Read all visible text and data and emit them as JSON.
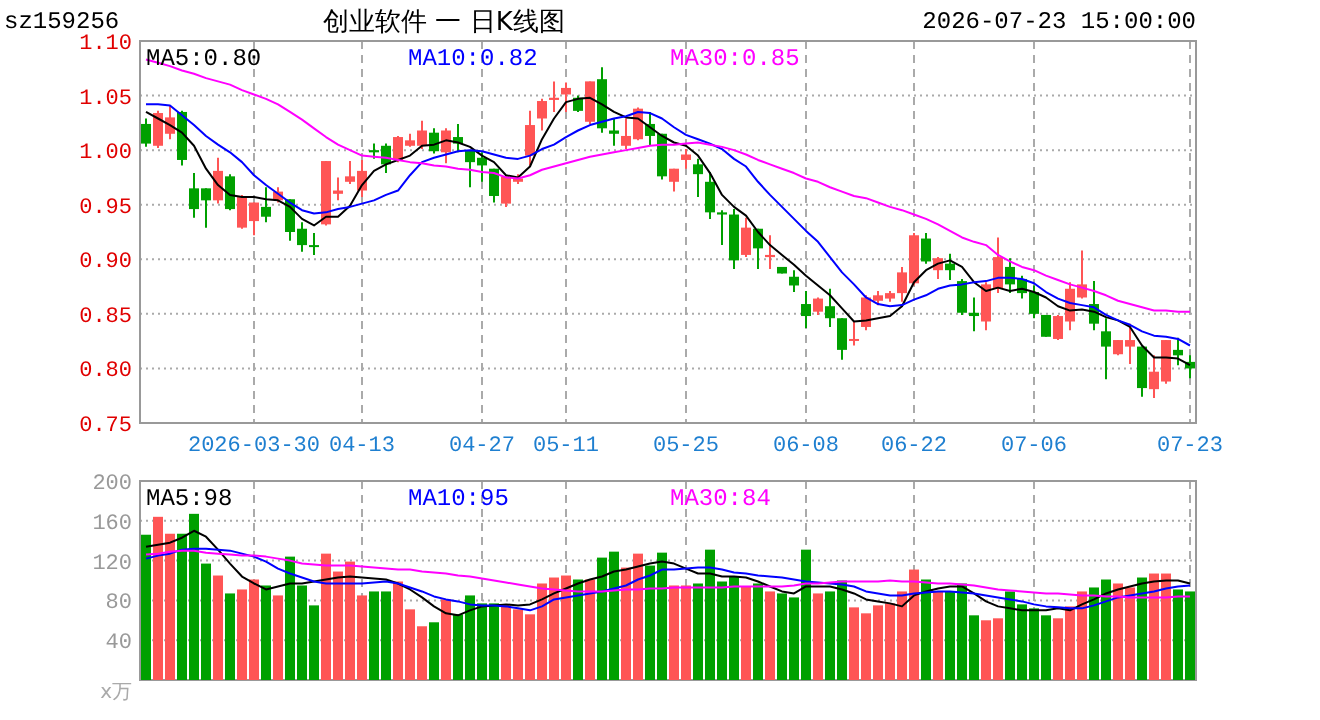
{
  "chart_data": [
    {
      "type": "candlestick",
      "title": "创业软件 一 日K线图",
      "subtitle": "2026-07-23 15:00:00",
      "annotations": [
        "sz159256"
      ],
      "categories": [
        null,
        null,
        null,
        null,
        null,
        null,
        null,
        null,
        null,
        "2026-03-30",
        null,
        null,
        null,
        null,
        null,
        null,
        null,
        null,
        "04-13",
        null,
        null,
        null,
        null,
        null,
        null,
        null,
        null,
        null,
        "04-27",
        null,
        null,
        null,
        null,
        null,
        null,
        "05-11",
        null,
        null,
        null,
        null,
        null,
        null,
        null,
        null,
        null,
        "05-25",
        null,
        null,
        null,
        null,
        null,
        null,
        null,
        null,
        null,
        "06-08",
        null,
        null,
        null,
        null,
        null,
        null,
        null,
        null,
        "06-22",
        null,
        null,
        null,
        null,
        null,
        null,
        null,
        null,
        null,
        "07-06",
        null,
        null,
        null,
        null,
        null,
        null,
        null,
        null,
        null,
        null,
        null,
        null,
        "07-23"
      ],
      "ohlc": [
        [
          1.024,
          1.029,
          1.003,
          1.006
        ],
        [
          1.004,
          1.036,
          1.002,
          1.034
        ],
        [
          1.015,
          1.041,
          1.01,
          1.03
        ],
        [
          1.035,
          1.036,
          0.986,
          0.991
        ],
        [
          0.965,
          0.979,
          0.938,
          0.946
        ],
        [
          0.965,
          0.965,
          0.929,
          0.954
        ],
        [
          0.954,
          0.993,
          0.951,
          0.981
        ],
        [
          0.976,
          0.978,
          0.945,
          0.946
        ],
        [
          0.929,
          0.959,
          0.928,
          0.957
        ],
        [
          0.935,
          0.952,
          0.922,
          0.952
        ],
        [
          0.948,
          0.966,
          0.934,
          0.939
        ],
        [
          0.954,
          0.966,
          0.952,
          0.962
        ],
        [
          0.955,
          0.955,
          0.917,
          0.925
        ],
        [
          0.928,
          0.934,
          0.907,
          0.913
        ],
        [
          0.913,
          0.924,
          0.904,
          0.912
        ],
        [
          0.932,
          0.99,
          0.931,
          0.99
        ],
        [
          0.96,
          0.975,
          0.954,
          0.963
        ],
        [
          0.971,
          0.99,
          0.969,
          0.976
        ],
        [
          0.963,
          0.991,
          0.957,
          0.981
        ],
        [
          1.0,
          1.006,
          0.992,
          0.998
        ],
        [
          1.004,
          1.006,
          0.979,
          0.987
        ],
        [
          0.991,
          1.013,
          0.989,
          1.012
        ],
        [
          1.004,
          1.015,
          1.003,
          1.009
        ],
        [
          1.004,
          1.027,
          1.001,
          1.018
        ],
        [
          1.016,
          1.02,
          0.997,
          0.999
        ],
        [
          0.998,
          1.02,
          0.988,
          1.018
        ],
        [
          1.012,
          1.024,
          0.998,
          1.006
        ],
        [
          1.0,
          1.0,
          0.966,
          0.989
        ],
        [
          0.993,
          0.998,
          0.971,
          0.986
        ],
        [
          0.983,
          0.983,
          0.952,
          0.958
        ],
        [
          0.951,
          0.976,
          0.948,
          0.976
        ],
        [
          0.971,
          0.978,
          0.969,
          0.974
        ],
        [
          0.995,
          1.036,
          0.986,
          1.023
        ],
        [
          1.029,
          1.047,
          1.018,
          1.045
        ],
        [
          1.046,
          1.063,
          1.035,
          1.048
        ],
        [
          1.051,
          1.062,
          1.035,
          1.057
        ],
        [
          1.048,
          1.05,
          1.035,
          1.036
        ],
        [
          1.026,
          1.063,
          1.024,
          1.063
        ],
        [
          1.065,
          1.076,
          1.016,
          1.02
        ],
        [
          1.018,
          1.029,
          1.004,
          1.015
        ],
        [
          1.004,
          1.029,
          1.001,
          1.013
        ],
        [
          1.01,
          1.039,
          1.009,
          1.038
        ],
        [
          1.024,
          1.035,
          1.004,
          1.013
        ],
        [
          1.015,
          1.015,
          0.973,
          0.976
        ],
        [
          0.971,
          0.983,
          0.962,
          0.983
        ],
        [
          0.991,
          1.001,
          0.983,
          0.996
        ],
        [
          0.987,
          0.992,
          0.957,
          0.978
        ],
        [
          0.971,
          0.98,
          0.937,
          0.943
        ],
        [
          0.943,
          0.945,
          0.913,
          0.941
        ],
        [
          0.941,
          0.946,
          0.891,
          0.899
        ],
        [
          0.904,
          0.938,
          0.902,
          0.929
        ],
        [
          0.928,
          0.928,
          0.891,
          0.91
        ],
        [
          0.902,
          0.922,
          0.891,
          0.904
        ],
        [
          0.893,
          0.893,
          0.887,
          0.887
        ],
        [
          0.884,
          0.89,
          0.87,
          0.876
        ],
        [
          0.859,
          0.871,
          0.837,
          0.848
        ],
        [
          0.852,
          0.865,
          0.849,
          0.864
        ],
        [
          0.857,
          0.873,
          0.838,
          0.846
        ],
        [
          0.846,
          0.846,
          0.808,
          0.817
        ],
        [
          0.826,
          0.843,
          0.821,
          0.827
        ],
        [
          0.838,
          0.867,
          0.835,
          0.865
        ],
        [
          0.862,
          0.871,
          0.858,
          0.867
        ],
        [
          0.864,
          0.871,
          0.861,
          0.869
        ],
        [
          0.869,
          0.893,
          0.861,
          0.888
        ],
        [
          0.878,
          0.924,
          0.876,
          0.922
        ],
        [
          0.919,
          0.924,
          0.896,
          0.898
        ],
        [
          0.89,
          0.902,
          0.882,
          0.901
        ],
        [
          0.896,
          0.905,
          0.881,
          0.89
        ],
        [
          0.88,
          0.882,
          0.849,
          0.851
        ],
        [
          0.851,
          0.865,
          0.834,
          0.848
        ],
        [
          0.843,
          0.879,
          0.835,
          0.877
        ],
        [
          0.873,
          0.92,
          0.869,
          0.902
        ],
        [
          0.893,
          0.901,
          0.869,
          0.877
        ],
        [
          0.882,
          0.885,
          0.864,
          0.869
        ],
        [
          0.87,
          0.876,
          0.846,
          0.85
        ],
        [
          0.849,
          0.849,
          0.829,
          0.829
        ],
        [
          0.827,
          0.849,
          0.826,
          0.848
        ],
        [
          0.843,
          0.879,
          0.835,
          0.873
        ],
        [
          0.865,
          0.908,
          0.864,
          0.877
        ],
        [
          0.859,
          0.88,
          0.835,
          0.841
        ],
        [
          0.834,
          0.846,
          0.79,
          0.82
        ],
        [
          0.813,
          0.826,
          0.812,
          0.826
        ],
        [
          0.82,
          0.841,
          0.804,
          0.826
        ],
        [
          0.82,
          0.82,
          0.774,
          0.782
        ],
        [
          0.781,
          0.812,
          0.773,
          0.797
        ],
        [
          0.788,
          0.826,
          0.786,
          0.826
        ],
        [
          0.817,
          0.828,
          0.803,
          0.812
        ],
        [
          0.806,
          0.812,
          0.791,
          0.8
        ]
      ],
      "colors": [
        "#00a000",
        "#ff5555",
        "#ff5555",
        "#00a000",
        "#00a000",
        "#00a000",
        "#ff5555",
        "#00a000",
        "#ff5555",
        "#ff5555",
        "#00a000",
        "#ff5555",
        "#00a000",
        "#00a000",
        "#00a000",
        "#ff5555",
        "#ff5555",
        "#ff5555",
        "#ff5555",
        "#00a000",
        "#00a000",
        "#ff5555",
        "#ff5555",
        "#ff5555",
        "#00a000",
        "#ff5555",
        "#00a000",
        "#00a000",
        "#00a000",
        "#00a000",
        "#ff5555",
        "#ff5555",
        "#ff5555",
        "#ff5555",
        "#ff5555",
        "#ff5555",
        "#00a000",
        "#ff5555",
        "#00a000",
        "#00a000",
        "#ff5555",
        "#ff5555",
        "#00a000",
        "#00a000",
        "#ff5555",
        "#ff5555",
        "#00a000",
        "#00a000",
        "#00a000",
        "#00a000",
        "#ff5555",
        "#00a000",
        "#ff5555",
        "#00a000",
        "#00a000",
        "#00a000",
        "#ff5555",
        "#00a000",
        "#00a000",
        "#ff5555",
        "#ff5555",
        "#ff5555",
        "#ff5555",
        "#ff5555",
        "#ff5555",
        "#00a000",
        "#ff5555",
        "#00a000",
        "#00a000",
        "#00a000",
        "#ff5555",
        "#ff5555",
        "#00a000",
        "#00a000",
        "#00a000",
        "#00a000",
        "#ff5555",
        "#ff5555",
        "#ff5555",
        "#00a000",
        "#00a000",
        "#ff5555",
        "#ff5555",
        "#00a000",
        "#ff5555",
        "#ff5555",
        "#00a000",
        "#00a000"
      ],
      "series": [
        {
          "name": "MA5:0.80",
          "type": "line",
          "color": "#000000",
          "values": [
            1.035,
            1.029,
            1.023,
            1.016,
            1.004,
            0.983,
            0.968,
            0.959,
            0.957,
            0.957,
            0.955,
            0.954,
            0.948,
            0.937,
            0.931,
            0.939,
            0.939,
            0.949,
            0.968,
            0.981,
            0.987,
            0.991,
            0.995,
            1.004,
            1.005,
            1.009,
            1.007,
            1.003,
            0.995,
            0.989,
            0.977,
            0.975,
            0.985,
            1.01,
            1.029,
            1.044,
            1.047,
            1.048,
            1.042,
            1.035,
            1.03,
            1.029,
            1.021,
            1.013,
            1.007,
            1.004,
            0.995,
            0.979,
            0.959,
            0.948,
            0.94,
            0.925,
            0.913,
            0.904,
            0.895,
            0.885,
            0.876,
            0.867,
            0.855,
            0.843,
            0.844,
            0.846,
            0.848,
            0.857,
            0.879,
            0.89,
            0.896,
            0.899,
            0.893,
            0.879,
            0.871,
            0.874,
            0.871,
            0.873,
            0.87,
            0.865,
            0.857,
            0.853,
            0.854,
            0.852,
            0.847,
            0.844,
            0.838,
            0.821,
            0.81,
            0.81,
            0.809,
            0.803
          ]
        },
        {
          "name": "MA10:0.82",
          "type": "line",
          "color": "#0000ff",
          "values": [
            1.042,
            1.042,
            1.041,
            1.032,
            1.023,
            1.013,
            1.005,
            0.998,
            0.989,
            0.977,
            0.968,
            0.96,
            0.952,
            0.945,
            0.942,
            0.943,
            0.946,
            0.948,
            0.951,
            0.954,
            0.959,
            0.963,
            0.977,
            0.989,
            0.993,
            0.996,
            0.999,
            1.0,
            0.999,
            0.996,
            0.993,
            0.992,
            0.995,
            1.001,
            1.005,
            1.012,
            1.018,
            1.023,
            1.026,
            1.029,
            1.031,
            1.035,
            1.034,
            1.029,
            1.021,
            1.014,
            1.01,
            1.006,
            1.001,
            0.992,
            0.985,
            0.971,
            0.959,
            0.948,
            0.937,
            0.926,
            0.916,
            0.902,
            0.888,
            0.877,
            0.865,
            0.859,
            0.857,
            0.858,
            0.863,
            0.867,
            0.873,
            0.876,
            0.877,
            0.879,
            0.88,
            0.883,
            0.883,
            0.882,
            0.878,
            0.87,
            0.864,
            0.86,
            0.858,
            0.856,
            0.849,
            0.844,
            0.84,
            0.834,
            0.83,
            0.829,
            0.827,
            0.821
          ]
        },
        {
          "name": "MA30:0.85",
          "type": "line",
          "color": "#ff00ff",
          "values": [
            1.083,
            1.08,
            1.077,
            1.073,
            1.07,
            1.066,
            1.063,
            1.06,
            1.055,
            1.051,
            1.047,
            1.042,
            1.035,
            1.028,
            1.02,
            1.012,
            1.005,
            1.0,
            0.995,
            0.994,
            0.993,
            0.991,
            0.989,
            0.988,
            0.986,
            0.985,
            0.983,
            0.982,
            0.98,
            0.979,
            0.975,
            0.974,
            0.977,
            0.982,
            0.985,
            0.988,
            0.991,
            0.994,
            0.996,
            0.998,
            1.0,
            1.002,
            1.004,
            1.005,
            1.005,
            1.006,
            1.007,
            1.005,
            1.003,
            1.0,
            0.996,
            0.991,
            0.987,
            0.983,
            0.979,
            0.974,
            0.971,
            0.966,
            0.962,
            0.958,
            0.956,
            0.952,
            0.948,
            0.945,
            0.941,
            0.937,
            0.932,
            0.926,
            0.92,
            0.916,
            0.913,
            0.904,
            0.898,
            0.893,
            0.89,
            0.885,
            0.881,
            0.877,
            0.874,
            0.871,
            0.867,
            0.862,
            0.859,
            0.856,
            0.853,
            0.853,
            0.852,
            0.852
          ]
        }
      ],
      "ylim": [
        0.75,
        1.1
      ],
      "yticks": [
        {
          "value": 0.75,
          "label": "0.75"
        },
        {
          "value": 0.8,
          "label": "0.80"
        },
        {
          "value": 0.85,
          "label": "0.85"
        },
        {
          "value": 0.9,
          "label": "0.90"
        },
        {
          "value": 0.95,
          "label": "0.95"
        },
        {
          "value": 1.0,
          "label": "1.00"
        },
        {
          "value": 1.05,
          "label": "1.05"
        },
        {
          "value": 1.1,
          "label": "1.10"
        }
      ],
      "grid": true,
      "legend": "top"
    },
    {
      "type": "bar",
      "ylabel": "x万",
      "tick_labels": "y",
      "categories": [
        null,
        null,
        null,
        null,
        null,
        null,
        null,
        null,
        null,
        null,
        null,
        null,
        null,
        null,
        null,
        null,
        null,
        null,
        null,
        null,
        null,
        null,
        null,
        null,
        null,
        null,
        null,
        null,
        null,
        null,
        null,
        null,
        null,
        null,
        null,
        null,
        null,
        null,
        null,
        null,
        null,
        null,
        null,
        null,
        null,
        null,
        null,
        null,
        null,
        null,
        null,
        null,
        null,
        null,
        null,
        null,
        null,
        null,
        null,
        null,
        null,
        null,
        null,
        null,
        null,
        null,
        null,
        null,
        null,
        null,
        null,
        null,
        null,
        null,
        null,
        null,
        null,
        null,
        null,
        null,
        null,
        null,
        null,
        null,
        null,
        null,
        null,
        null
      ],
      "values": [
        146,
        164,
        147,
        147,
        167,
        117,
        105,
        87,
        91,
        101,
        95,
        85,
        124,
        95,
        75,
        127,
        109,
        119,
        85,
        89,
        89,
        99,
        71,
        54,
        58,
        81,
        66,
        85,
        77,
        77,
        75,
        71,
        66,
        97,
        103,
        105,
        101,
        101,
        123,
        129,
        113,
        127,
        115,
        128,
        95,
        95,
        97,
        131,
        99,
        104,
        94,
        97,
        89,
        87,
        83,
        131,
        87,
        89,
        100,
        73,
        67,
        75,
        77,
        89,
        111,
        101,
        89,
        89,
        97,
        65,
        60,
        62,
        89,
        76,
        72,
        65,
        62,
        74,
        89,
        93,
        101,
        97,
        93,
        103,
        107,
        107,
        91,
        89
      ],
      "colors": [
        "#00a000",
        "#ff5555",
        "#ff5555",
        "#00a000",
        "#00a000",
        "#00a000",
        "#ff5555",
        "#00a000",
        "#ff5555",
        "#ff5555",
        "#00a000",
        "#ff5555",
        "#00a000",
        "#00a000",
        "#00a000",
        "#ff5555",
        "#ff5555",
        "#ff5555",
        "#ff5555",
        "#00a000",
        "#00a000",
        "#ff5555",
        "#ff5555",
        "#ff5555",
        "#00a000",
        "#ff5555",
        "#00a000",
        "#00a000",
        "#00a000",
        "#00a000",
        "#ff5555",
        "#ff5555",
        "#ff5555",
        "#ff5555",
        "#ff5555",
        "#ff5555",
        "#00a000",
        "#ff5555",
        "#00a000",
        "#00a000",
        "#ff5555",
        "#ff5555",
        "#00a000",
        "#00a000",
        "#ff5555",
        "#ff5555",
        "#00a000",
        "#00a000",
        "#00a000",
        "#00a000",
        "#ff5555",
        "#00a000",
        "#ff5555",
        "#00a000",
        "#00a000",
        "#00a000",
        "#ff5555",
        "#00a000",
        "#00a000",
        "#ff5555",
        "#ff5555",
        "#ff5555",
        "#ff5555",
        "#ff5555",
        "#ff5555",
        "#00a000",
        "#ff5555",
        "#00a000",
        "#00a000",
        "#00a000",
        "#ff5555",
        "#ff5555",
        "#00a000",
        "#00a000",
        "#00a000",
        "#00a000",
        "#ff5555",
        "#ff5555",
        "#ff5555",
        "#00a000",
        "#00a000",
        "#ff5555",
        "#ff5555",
        "#00a000",
        "#ff5555",
        "#ff5555",
        "#00a000",
        "#00a000"
      ],
      "series": [
        {
          "name": "MA5:98",
          "type": "line",
          "color": "#000000",
          "values": [
            134,
            136,
            138,
            143,
            150,
            144,
            131,
            117,
            104,
            97,
            91,
            94,
            97,
            97,
            99,
            101,
            103,
            104,
            103,
            102,
            101,
            97,
            91,
            83,
            74,
            67,
            65,
            70,
            74,
            75,
            76,
            75,
            76,
            81,
            87,
            92,
            97,
            101,
            104,
            109,
            111,
            114,
            117,
            119,
            117,
            112,
            107,
            107,
            104,
            104,
            103,
            99,
            94,
            89,
            87,
            94,
            94,
            94,
            91,
            87,
            81,
            79,
            77,
            74,
            85,
            89,
            92,
            94,
            94,
            87,
            79,
            74,
            72,
            70,
            70,
            70,
            72,
            70,
            76,
            81,
            87,
            91,
            94,
            97,
            99,
            100,
            100,
            97
          ]
        },
        {
          "name": "MA10:95",
          "type": "line",
          "color": "#0000ff",
          "values": [
            122,
            125,
            127,
            131,
            132,
            132,
            131,
            130,
            127,
            124,
            119,
            112,
            107,
            103,
            99,
            97,
            97,
            97,
            97,
            98,
            99,
            97,
            93,
            89,
            84,
            81,
            79,
            76,
            75,
            75,
            74,
            72,
            70,
            74,
            81,
            83,
            85,
            87,
            89,
            92,
            95,
            101,
            105,
            111,
            111,
            112,
            113,
            113,
            111,
            108,
            107,
            105,
            104,
            103,
            101,
            99,
            98,
            97,
            96,
            94,
            89,
            87,
            85,
            85,
            87,
            88,
            89,
            89,
            88,
            87,
            85,
            83,
            81,
            79,
            76,
            74,
            73,
            72,
            72,
            75,
            79,
            83,
            85,
            87,
            89,
            92,
            94,
            95
          ]
        },
        {
          "name": "MA30:84",
          "type": "line",
          "color": "#ff00ff",
          "values": [
            126,
            127,
            129,
            130,
            130,
            128,
            127,
            126,
            125,
            125,
            124,
            122,
            120,
            117,
            116,
            115,
            115,
            115,
            114,
            113,
            112,
            111,
            111,
            109,
            108,
            107,
            105,
            104,
            102,
            100,
            98,
            96,
            94,
            92,
            91,
            90,
            89,
            89,
            89,
            90,
            91,
            91,
            92,
            92,
            93,
            93,
            93,
            93,
            93,
            94,
            94,
            94,
            94,
            94,
            95,
            97,
            97,
            98,
            99,
            99,
            99,
            99,
            100,
            99,
            99,
            98,
            97,
            97,
            96,
            95,
            93,
            91,
            90,
            89,
            88,
            87,
            87,
            86,
            85,
            85,
            84,
            84,
            83,
            83,
            83,
            83,
            84,
            84
          ]
        }
      ],
      "ylim": [
        0,
        200
      ],
      "yticks": [
        40,
        80,
        120,
        160,
        200
      ],
      "grid": true,
      "legend": "top"
    }
  ]
}
